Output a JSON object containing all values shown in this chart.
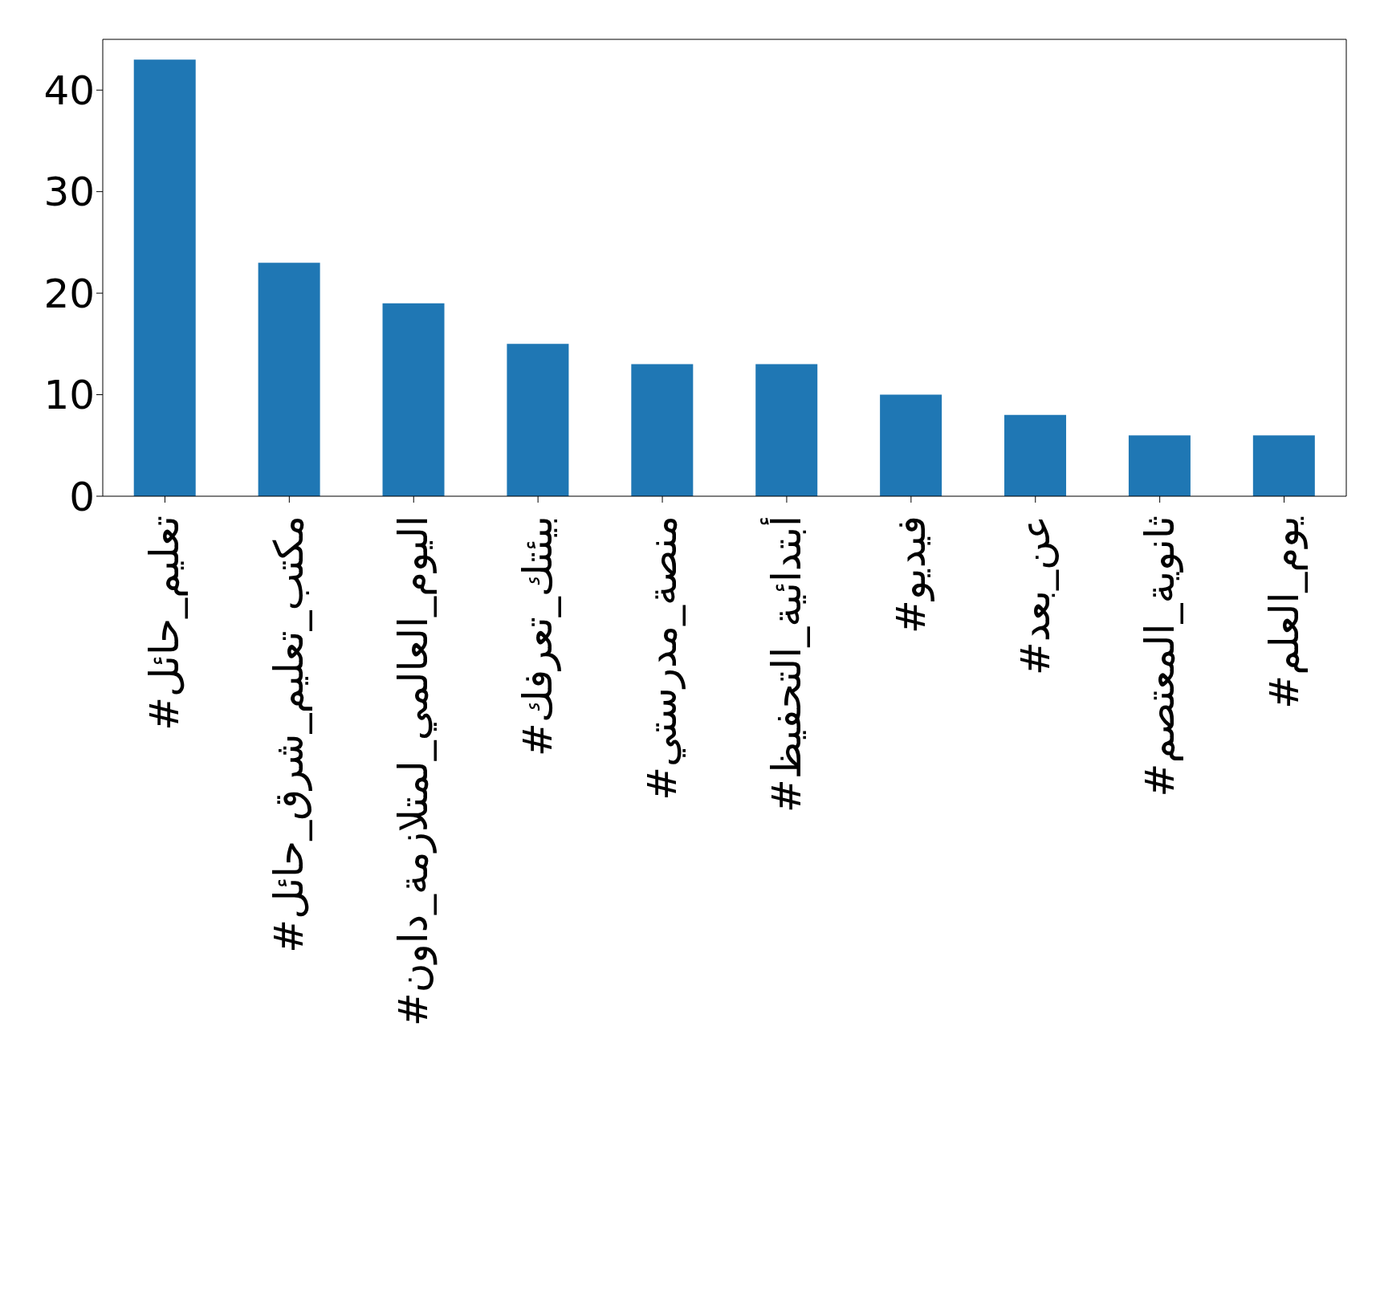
{
  "chart_data": {
    "type": "bar",
    "categories": [
      "#تعليم_حائل",
      "#مكتب_تعليم_شرق_حائل",
      "#اليوم_العالمي_لمتلازمة_داون",
      "#بيئتك_تعرفك",
      "#منصة_مدرستي",
      "#أبتدائية_التحفيظ",
      "#فيديو",
      "#عن_بعد",
      "#ثانوية_المعتصم",
      "#يوم_العلم"
    ],
    "values": [
      43,
      23,
      19,
      15,
      13,
      13,
      10,
      8,
      6,
      6
    ],
    "color": "#1f77b4",
    "ylim": [
      0,
      45
    ],
    "yticks": [
      0,
      10,
      20,
      30,
      40
    ],
    "grid": false,
    "legend": false
  }
}
